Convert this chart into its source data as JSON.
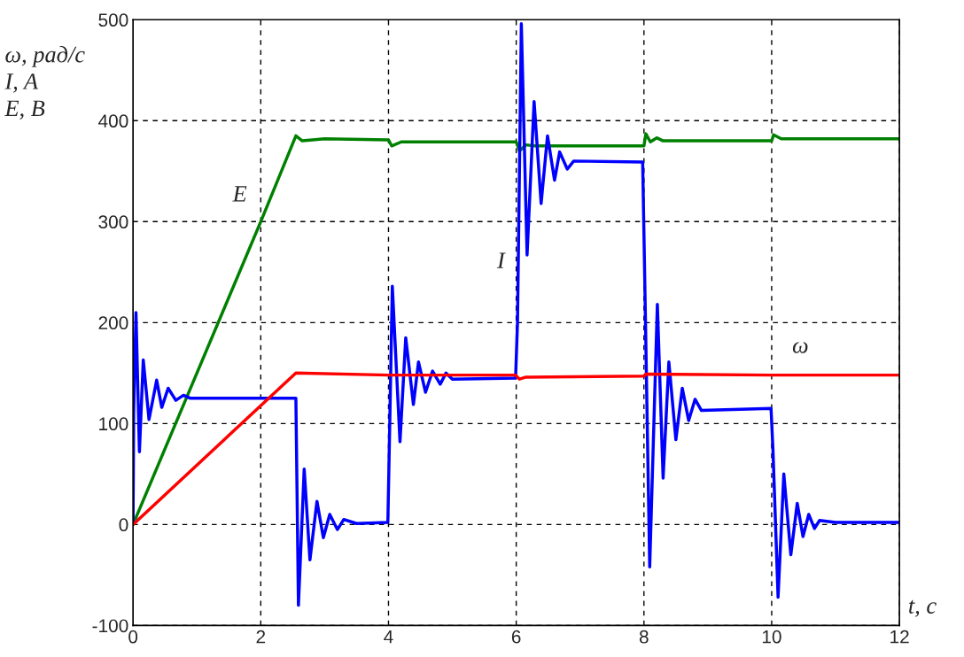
{
  "chart_data": {
    "type": "line",
    "ylabel": "ω, рад/с\nI, A\nE, B",
    "xlabel": "t, c",
    "xlim": [
      0,
      12
    ],
    "ylim": [
      -100,
      500
    ],
    "xticks": [
      0,
      2,
      4,
      6,
      8,
      10,
      12
    ],
    "yticks": [
      {
        "value": -100,
        "label": "-100"
      },
      0,
      100,
      200,
      300,
      400,
      500
    ],
    "grid": true,
    "legend": false,
    "series": [
      {
        "name": "E",
        "color": "#008000",
        "x": [
          0,
          0.3,
          1.0,
          2.0,
          2.55,
          2.65,
          3.0,
          4.0,
          4.05,
          4.2,
          5.0,
          6.0,
          6.05,
          6.15,
          6.3,
          7.0,
          8.0,
          8.03,
          8.1,
          8.2,
          8.3,
          9.0,
          10.0,
          10.03,
          10.15,
          11.0,
          12.0
        ],
        "values": [
          0,
          45,
          150,
          300,
          385,
          380,
          382,
          381,
          375,
          379,
          379,
          379,
          370,
          376,
          375,
          375,
          375,
          387,
          379,
          383,
          380,
          380,
          380,
          386,
          382,
          382,
          382
        ]
      },
      {
        "name": "I",
        "color": "#0000ff",
        "x": [
          0,
          0.01,
          0.046,
          0.1,
          0.16,
          0.25,
          0.37,
          0.45,
          0.55,
          0.67,
          0.79,
          0.9,
          2.55,
          2.59,
          2.68,
          2.77,
          2.88,
          2.98,
          3.08,
          3.2,
          3.3,
          3.5,
          3.99,
          4.02,
          4.06,
          4.18,
          4.27,
          4.39,
          4.47,
          4.58,
          4.69,
          4.81,
          4.9,
          5.0,
          5.99,
          6.02,
          6.08,
          6.17,
          6.28,
          6.39,
          6.49,
          6.6,
          6.68,
          6.8,
          6.9,
          7.98,
          8.02,
          8.09,
          8.21,
          8.3,
          8.39,
          8.5,
          8.6,
          8.7,
          8.8,
          8.9,
          9.99,
          10.02,
          10.1,
          10.19,
          10.3,
          10.4,
          10.49,
          10.58,
          10.67,
          10.75,
          11.0,
          12.0
        ],
        "values": [
          0,
          110,
          210,
          72,
          163,
          104,
          143,
          116,
          135,
          123,
          128,
          125,
          125,
          -80,
          55,
          -35,
          23,
          -13,
          10,
          -5,
          5,
          1,
          2,
          100,
          236,
          82,
          185,
          119,
          161,
          131,
          152,
          139,
          150,
          144,
          145,
          200,
          496,
          267,
          419,
          318,
          385,
          341,
          369,
          352,
          360,
          359,
          216,
          -42,
          218,
          46,
          161,
          84,
          135,
          103,
          124,
          113,
          115,
          74,
          -72,
          50,
          -30,
          21,
          -12,
          10,
          -4,
          4,
          2,
          2
        ]
      },
      {
        "name": "ω",
        "color": "#ff0000",
        "x": [
          0,
          2.55,
          4.0,
          5.99,
          6.05,
          6.15,
          8.0,
          8.03,
          10.0,
          12.0
        ],
        "values": [
          0,
          150,
          148,
          148,
          144,
          146,
          147,
          149,
          148,
          148
        ]
      }
    ]
  }
}
